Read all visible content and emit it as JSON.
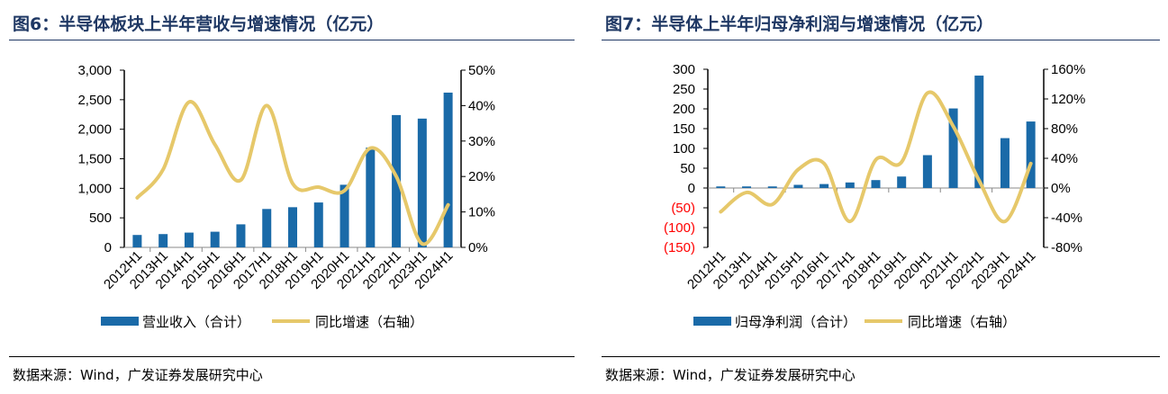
{
  "charts": [
    {
      "title": "图6：半导体板块上半年营收与增速情况（亿元）",
      "source": "数据来源：Wind，广发证券发展研究中心"
    },
    {
      "title": "图7：半导体上半年归母净利润与增速情况（亿元）",
      "source": "数据来源：Wind，广发证券发展研究中心"
    }
  ],
  "chart_data": [
    {
      "type": "bar+line",
      "categories": [
        "2012H1",
        "2013H1",
        "2014H1",
        "2015H1",
        "2016H1",
        "2017H1",
        "2018H1",
        "2019H1",
        "2020H1",
        "2021H1",
        "2022H1",
        "2023H1",
        "2024H1"
      ],
      "series": [
        {
          "name": "营业收入（合计）",
          "type": "bar",
          "axis": "left",
          "values": [
            210,
            225,
            250,
            265,
            390,
            650,
            680,
            760,
            1060,
            1690,
            2240,
            2180,
            2620
          ]
        },
        {
          "name": "同比增速（右轴）",
          "type": "line",
          "axis": "right",
          "values": [
            14,
            22,
            41,
            29,
            19,
            40,
            18,
            17,
            16,
            28,
            20,
            1,
            12
          ]
        }
      ],
      "ylim": [
        0,
        3000
      ],
      "yticks": [
        "0",
        "500",
        "1,000",
        "1,500",
        "2,000",
        "2,500",
        "3,000"
      ],
      "y2lim": [
        0,
        50
      ],
      "y2ticks": [
        "0%",
        "10%",
        "20%",
        "30%",
        "40%",
        "50%"
      ],
      "colors": {
        "bar": "#1a6aa8",
        "line": "#e6c86a"
      },
      "legend": "bottom"
    },
    {
      "type": "bar+line",
      "categories": [
        "2012H1",
        "2013H1",
        "2014H1",
        "2015H1",
        "2016H1",
        "2017H1",
        "2018H1",
        "2019H1",
        "2020H1",
        "2021H1",
        "2022H1",
        "2023H1",
        "2024H1"
      ],
      "series": [
        {
          "name": "归母净利润（合计）",
          "type": "bar",
          "axis": "left",
          "values": [
            4,
            4,
            4,
            8,
            10,
            14,
            20,
            29,
            83,
            201,
            284,
            126,
            168
          ]
        },
        {
          "name": "同比增速（右轴）",
          "type": "line",
          "axis": "right",
          "values": [
            -32,
            -6,
            -22,
            25,
            33,
            -45,
            38,
            35,
            128,
            83,
            10,
            -45,
            33
          ]
        }
      ],
      "ylim": [
        -150,
        300
      ],
      "yticks": [
        "(150)",
        "(100)",
        "(50)",
        "0",
        "50",
        "100",
        "150",
        "200",
        "250",
        "300"
      ],
      "y2lim": [
        -80,
        160
      ],
      "y2ticks": [
        "-80%",
        "-40%",
        "0%",
        "40%",
        "80%",
        "120%",
        "160%"
      ],
      "colors": {
        "bar": "#1a6aa8",
        "line": "#e6c86a",
        "negative_tick": "#ff0000"
      },
      "legend": "bottom"
    }
  ]
}
